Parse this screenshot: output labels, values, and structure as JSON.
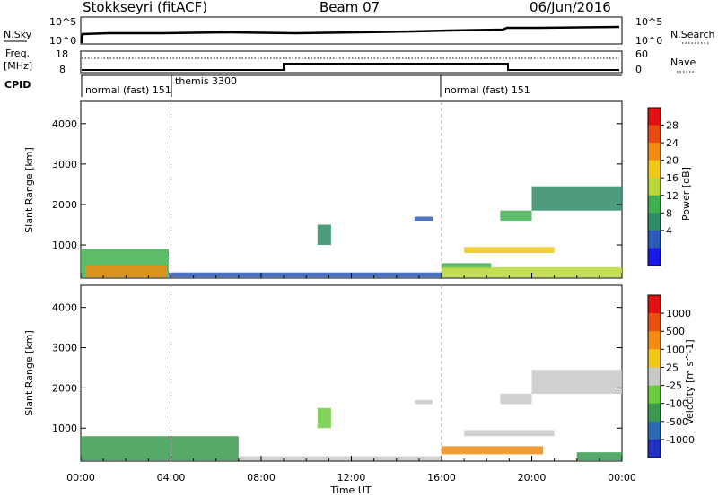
{
  "header": {
    "station": "Stokkseyri (fitACF)",
    "beam": "Beam 07",
    "date": "06/Jun/2016"
  },
  "strips": {
    "nsky": {
      "label": "N.Sky",
      "top_tick": "10^5",
      "bottom_tick": "10^0",
      "right_top_tick": "10^5",
      "right_bottom_tick": "10^0",
      "right_label": "N.Search"
    },
    "freq": {
      "label_line1": "Freq.",
      "label_line2": "[MHz]",
      "top_tick": "18",
      "bottom_tick": "8",
      "right_top_tick": "60",
      "right_bottom_tick": "0",
      "right_label": "Nave"
    },
    "cpid": {
      "label": "CPID",
      "segments": [
        {
          "label": "normal (fast) 151",
          "start_h": 0,
          "end_h": 4.0
        },
        {
          "label": "themis 3300",
          "start_h": 4.0,
          "end_h": 16.0
        },
        {
          "label": "normal (fast) 151",
          "start_h": 16.0,
          "end_h": 24.0
        }
      ]
    }
  },
  "chart_data": [
    {
      "type": "heatmap",
      "name": "power",
      "ylabel": "Slant Range [km]",
      "xlabel": "Time UT",
      "x_ticks": [
        "00:00",
        "04:00",
        "08:00",
        "12:00",
        "16:00",
        "20:00",
        "00:00"
      ],
      "x_range_hours": [
        0,
        24
      ],
      "y_ticks": [
        "1000",
        "2000",
        "3000",
        "4000"
      ],
      "y_tick_values": [
        1000,
        2000,
        3000,
        4000
      ],
      "ylim": [
        180,
        4550
      ],
      "colorbar": {
        "label": "Power [dB]",
        "ticks": [
          "28",
          "24",
          "20",
          "16",
          "12",
          "8",
          "4"
        ],
        "colors": [
          "#1a1ae6",
          "#2a5ab8",
          "#2f8a66",
          "#3fb050",
          "#b8d838",
          "#f0c818",
          "#f08c10",
          "#e84a10",
          "#e01010"
        ]
      },
      "regions": [
        {
          "t0": 0.0,
          "t1": 3.9,
          "r0": 200,
          "r1": 900,
          "level": 3
        },
        {
          "t0": 0.2,
          "t1": 3.8,
          "r0": 200,
          "r1": 500,
          "level": 6
        },
        {
          "t0": 3.9,
          "t1": 16.0,
          "r0": 200,
          "r1": 320,
          "level": 1
        },
        {
          "t0": 10.5,
          "t1": 11.1,
          "r0": 1000,
          "r1": 1500,
          "level": 2
        },
        {
          "t0": 14.8,
          "t1": 15.6,
          "r0": 1600,
          "r1": 1700,
          "level": 1
        },
        {
          "t0": 16.0,
          "t1": 18.2,
          "r0": 400,
          "r1": 550,
          "level": 3
        },
        {
          "t0": 17.0,
          "t1": 21.0,
          "r0": 800,
          "r1": 950,
          "level": 5
        },
        {
          "t0": 18.6,
          "t1": 20.0,
          "r0": 1600,
          "r1": 1850,
          "level": 3
        },
        {
          "t0": 20.0,
          "t1": 24.0,
          "r0": 1850,
          "r1": 2450,
          "level": 2
        },
        {
          "t0": 16.0,
          "t1": 24.0,
          "r0": 200,
          "r1": 450,
          "level": 4
        }
      ]
    },
    {
      "type": "heatmap",
      "name": "velocity",
      "ylabel": "Slant Range [km]",
      "xlabel": "Time UT",
      "x_ticks": [
        "00:00",
        "04:00",
        "08:00",
        "12:00",
        "16:00",
        "20:00",
        "00:00"
      ],
      "x_range_hours": [
        0,
        24
      ],
      "y_ticks": [
        "1000",
        "2000",
        "3000",
        "4000"
      ],
      "y_tick_values": [
        1000,
        2000,
        3000,
        4000
      ],
      "ylim": [
        180,
        4550
      ],
      "colorbar": {
        "label": "Velocity [m s^-1]",
        "ticks": [
          "1000",
          "500",
          "100",
          "25",
          "-25",
          "-100",
          "-500",
          "-1000"
        ],
        "colors": [
          "#2030c0",
          "#2a6ab0",
          "#3a9a50",
          "#6ccc40",
          "#c8c8c8",
          "#f0c818",
          "#f08c10",
          "#e85010",
          "#e01010"
        ]
      },
      "regions": [
        {
          "t0": 0.0,
          "t1": 7.0,
          "r0": 200,
          "r1": 800,
          "level": 2
        },
        {
          "t0": 7.0,
          "t1": 16.0,
          "r0": 200,
          "r1": 300,
          "level": 4
        },
        {
          "t0": 10.5,
          "t1": 11.1,
          "r0": 1000,
          "r1": 1500,
          "level": 3
        },
        {
          "t0": 14.8,
          "t1": 15.6,
          "r0": 1600,
          "r1": 1700,
          "level": 4
        },
        {
          "t0": 16.0,
          "t1": 20.5,
          "r0": 350,
          "r1": 550,
          "level": 6
        },
        {
          "t0": 17.0,
          "t1": 21.0,
          "r0": 800,
          "r1": 950,
          "level": 4
        },
        {
          "t0": 18.6,
          "t1": 20.0,
          "r0": 1600,
          "r1": 1850,
          "level": 4
        },
        {
          "t0": 20.0,
          "t1": 24.0,
          "r0": 1850,
          "r1": 2450,
          "level": 4
        },
        {
          "t0": 22.0,
          "t1": 24.0,
          "r0": 200,
          "r1": 400,
          "level": 2
        }
      ]
    }
  ]
}
